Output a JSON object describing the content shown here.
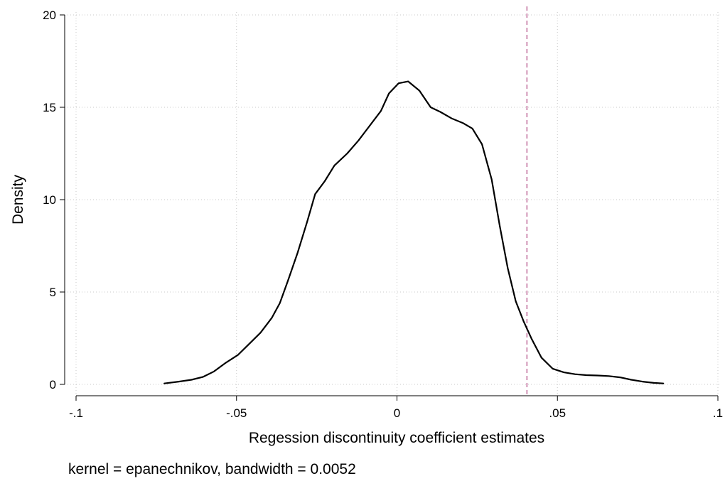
{
  "chart_data": {
    "type": "line",
    "title": "",
    "xlabel": "Regession discontinuity coefficient estimates",
    "ylabel": "Density",
    "note": "kernel = epanechnikov, bandwidth = 0.0052",
    "xlim": [
      -0.1,
      0.1
    ],
    "ylim": [
      0,
      20
    ],
    "x_ticks": [
      {
        "value": -0.1,
        "label": "-.1"
      },
      {
        "value": -0.05,
        "label": "-.05"
      },
      {
        "value": 0,
        "label": "0"
      },
      {
        "value": 0.05,
        "label": ".05"
      },
      {
        "value": 0.1,
        "label": ".1"
      }
    ],
    "y_ticks": [
      {
        "value": 0,
        "label": "0"
      },
      {
        "value": 5,
        "label": "5"
      },
      {
        "value": 10,
        "label": "10"
      },
      {
        "value": 15,
        "label": "15"
      },
      {
        "value": 20,
        "label": "20"
      }
    ],
    "grid": true,
    "reference_line": {
      "x": 0.0405,
      "color": "#c06a9a",
      "style": "dashed"
    },
    "series": [
      {
        "color": "#000000",
        "x": [
          -0.0725,
          -0.068,
          -0.064,
          -0.0605,
          -0.057,
          -0.0535,
          -0.0495,
          -0.046,
          -0.0425,
          -0.039,
          -0.0365,
          -0.034,
          -0.031,
          -0.028,
          -0.0255,
          -0.0225,
          -0.0195,
          -0.0155,
          -0.012,
          -0.0085,
          -0.005,
          -0.0025,
          0.0005,
          0.0035,
          0.007,
          0.0105,
          0.0135,
          0.017,
          0.0205,
          0.0235,
          0.0265,
          0.0295,
          0.032,
          0.0345,
          0.037,
          0.0395,
          0.042,
          0.045,
          0.0485,
          0.052,
          0.0555,
          0.059,
          0.0625,
          0.066,
          0.0695,
          0.073,
          0.0765,
          0.08,
          0.083
        ],
        "y": [
          0.05,
          0.15,
          0.25,
          0.4,
          0.7,
          1.15,
          1.6,
          2.2,
          2.8,
          3.6,
          4.4,
          5.6,
          7.1,
          8.8,
          10.3,
          11.0,
          11.85,
          12.5,
          13.2,
          14.0,
          14.8,
          15.75,
          16.3,
          16.4,
          15.9,
          15.0,
          14.75,
          14.4,
          14.15,
          13.85,
          13.0,
          11.1,
          8.6,
          6.3,
          4.5,
          3.4,
          2.45,
          1.45,
          0.85,
          0.65,
          0.55,
          0.5,
          0.48,
          0.45,
          0.38,
          0.25,
          0.15,
          0.08,
          0.05
        ]
      }
    ]
  }
}
